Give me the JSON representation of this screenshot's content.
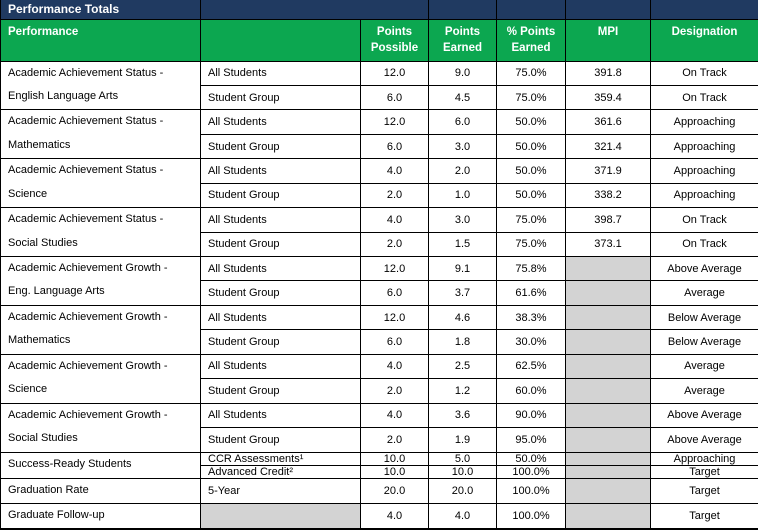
{
  "title": "Performance Totals",
  "colors": {
    "navy_header": "#203A61",
    "green_header": "#0CA750",
    "gray_cell": "#D3D3D3",
    "border": "#000000",
    "header_text": "#FFFFFF",
    "body_text": "#000000"
  },
  "table": {
    "column_headers": {
      "performance": "Performance",
      "subgroup": "",
      "points_possible": "Points Possible",
      "points_earned": "Points Earned",
      "pct_points_earned": "% Points Earned",
      "mpi": "MPI",
      "designation": "Designation"
    },
    "groups": [
      {
        "label": "Academic Achievement Status -\nEnglish Language Arts",
        "span": 2
      },
      {
        "label": "Academic Achievement Status -\nMathematics",
        "span": 2
      },
      {
        "label": "Academic Achievement Status -\nScience",
        "span": 2
      },
      {
        "label": "Academic Achievement Status -\nSocial Studies",
        "span": 2
      },
      {
        "label": "Academic Achievement Growth -\nEng. Language Arts",
        "span": 2
      },
      {
        "label": "Academic Achievement Growth -\nMathematics",
        "span": 2
      },
      {
        "label": "Academic Achievement Growth -\nScience",
        "span": 2
      },
      {
        "label": "Academic Achievement Growth -\nSocial Studies",
        "span": 2
      },
      {
        "label": "Success-Ready Students",
        "span": 2
      },
      {
        "label": "Graduation Rate",
        "span": 1
      },
      {
        "label": "Graduate Follow-up",
        "span": 1
      }
    ],
    "rows": [
      {
        "subgroup": "All Students",
        "points_possible": "12.0",
        "points_earned": "9.0",
        "pct_points_earned": "75.0%",
        "mpi": "391.8",
        "designation": "On Track"
      },
      {
        "subgroup": "Student Group",
        "points_possible": "6.0",
        "points_earned": "4.5",
        "pct_points_earned": "75.0%",
        "mpi": "359.4",
        "designation": "On Track"
      },
      {
        "subgroup": "All Students",
        "points_possible": "12.0",
        "points_earned": "6.0",
        "pct_points_earned": "50.0%",
        "mpi": "361.6",
        "designation": "Approaching"
      },
      {
        "subgroup": "Student Group",
        "points_possible": "6.0",
        "points_earned": "3.0",
        "pct_points_earned": "50.0%",
        "mpi": "321.4",
        "designation": "Approaching"
      },
      {
        "subgroup": "All Students",
        "points_possible": "4.0",
        "points_earned": "2.0",
        "pct_points_earned": "50.0%",
        "mpi": "371.9",
        "designation": "Approaching"
      },
      {
        "subgroup": "Student Group",
        "points_possible": "2.0",
        "points_earned": "1.0",
        "pct_points_earned": "50.0%",
        "mpi": "338.2",
        "designation": "Approaching"
      },
      {
        "subgroup": "All Students",
        "points_possible": "4.0",
        "points_earned": "3.0",
        "pct_points_earned": "75.0%",
        "mpi": "398.7",
        "designation": "On Track"
      },
      {
        "subgroup": "Student Group",
        "points_possible": "2.0",
        "points_earned": "1.5",
        "pct_points_earned": "75.0%",
        "mpi": "373.1",
        "designation": "On Track"
      },
      {
        "subgroup": "All Students",
        "points_possible": "12.0",
        "points_earned": "9.1",
        "pct_points_earned": "75.8%",
        "mpi": "",
        "designation": "Above Average"
      },
      {
        "subgroup": "Student Group",
        "points_possible": "6.0",
        "points_earned": "3.7",
        "pct_points_earned": "61.6%",
        "mpi": "",
        "designation": "Average"
      },
      {
        "subgroup": "All Students",
        "points_possible": "12.0",
        "points_earned": "4.6",
        "pct_points_earned": "38.3%",
        "mpi": "",
        "designation": "Below Average"
      },
      {
        "subgroup": "Student Group",
        "points_possible": "6.0",
        "points_earned": "1.8",
        "pct_points_earned": "30.0%",
        "mpi": "",
        "designation": "Below Average"
      },
      {
        "subgroup": "All Students",
        "points_possible": "4.0",
        "points_earned": "2.5",
        "pct_points_earned": "62.5%",
        "mpi": "",
        "designation": "Average"
      },
      {
        "subgroup": "Student Group",
        "points_possible": "2.0",
        "points_earned": "1.2",
        "pct_points_earned": "60.0%",
        "mpi": "",
        "designation": "Average"
      },
      {
        "subgroup": "All Students",
        "points_possible": "4.0",
        "points_earned": "3.6",
        "pct_points_earned": "90.0%",
        "mpi": "",
        "designation": "Above Average"
      },
      {
        "subgroup": "Student Group",
        "points_possible": "2.0",
        "points_earned": "1.9",
        "pct_points_earned": "95.0%",
        "mpi": "",
        "designation": "Above Average"
      },
      {
        "subgroup": "CCR Assessments¹",
        "points_possible": "10.0",
        "points_earned": "5.0",
        "pct_points_earned": "50.0%",
        "mpi": "",
        "designation": "Approaching"
      },
      {
        "subgroup": "Advanced Credit²",
        "points_possible": "10.0",
        "points_earned": "10.0",
        "pct_points_earned": "100.0%",
        "mpi": "",
        "designation": "Target"
      },
      {
        "subgroup": "5-Year",
        "points_possible": "20.0",
        "points_earned": "20.0",
        "pct_points_earned": "100.0%",
        "mpi": "",
        "designation": "Target"
      },
      {
        "subgroup": "",
        "points_possible": "4.0",
        "points_earned": "4.0",
        "pct_points_earned": "100.0%",
        "mpi": "",
        "designation": "Target"
      }
    ]
  }
}
